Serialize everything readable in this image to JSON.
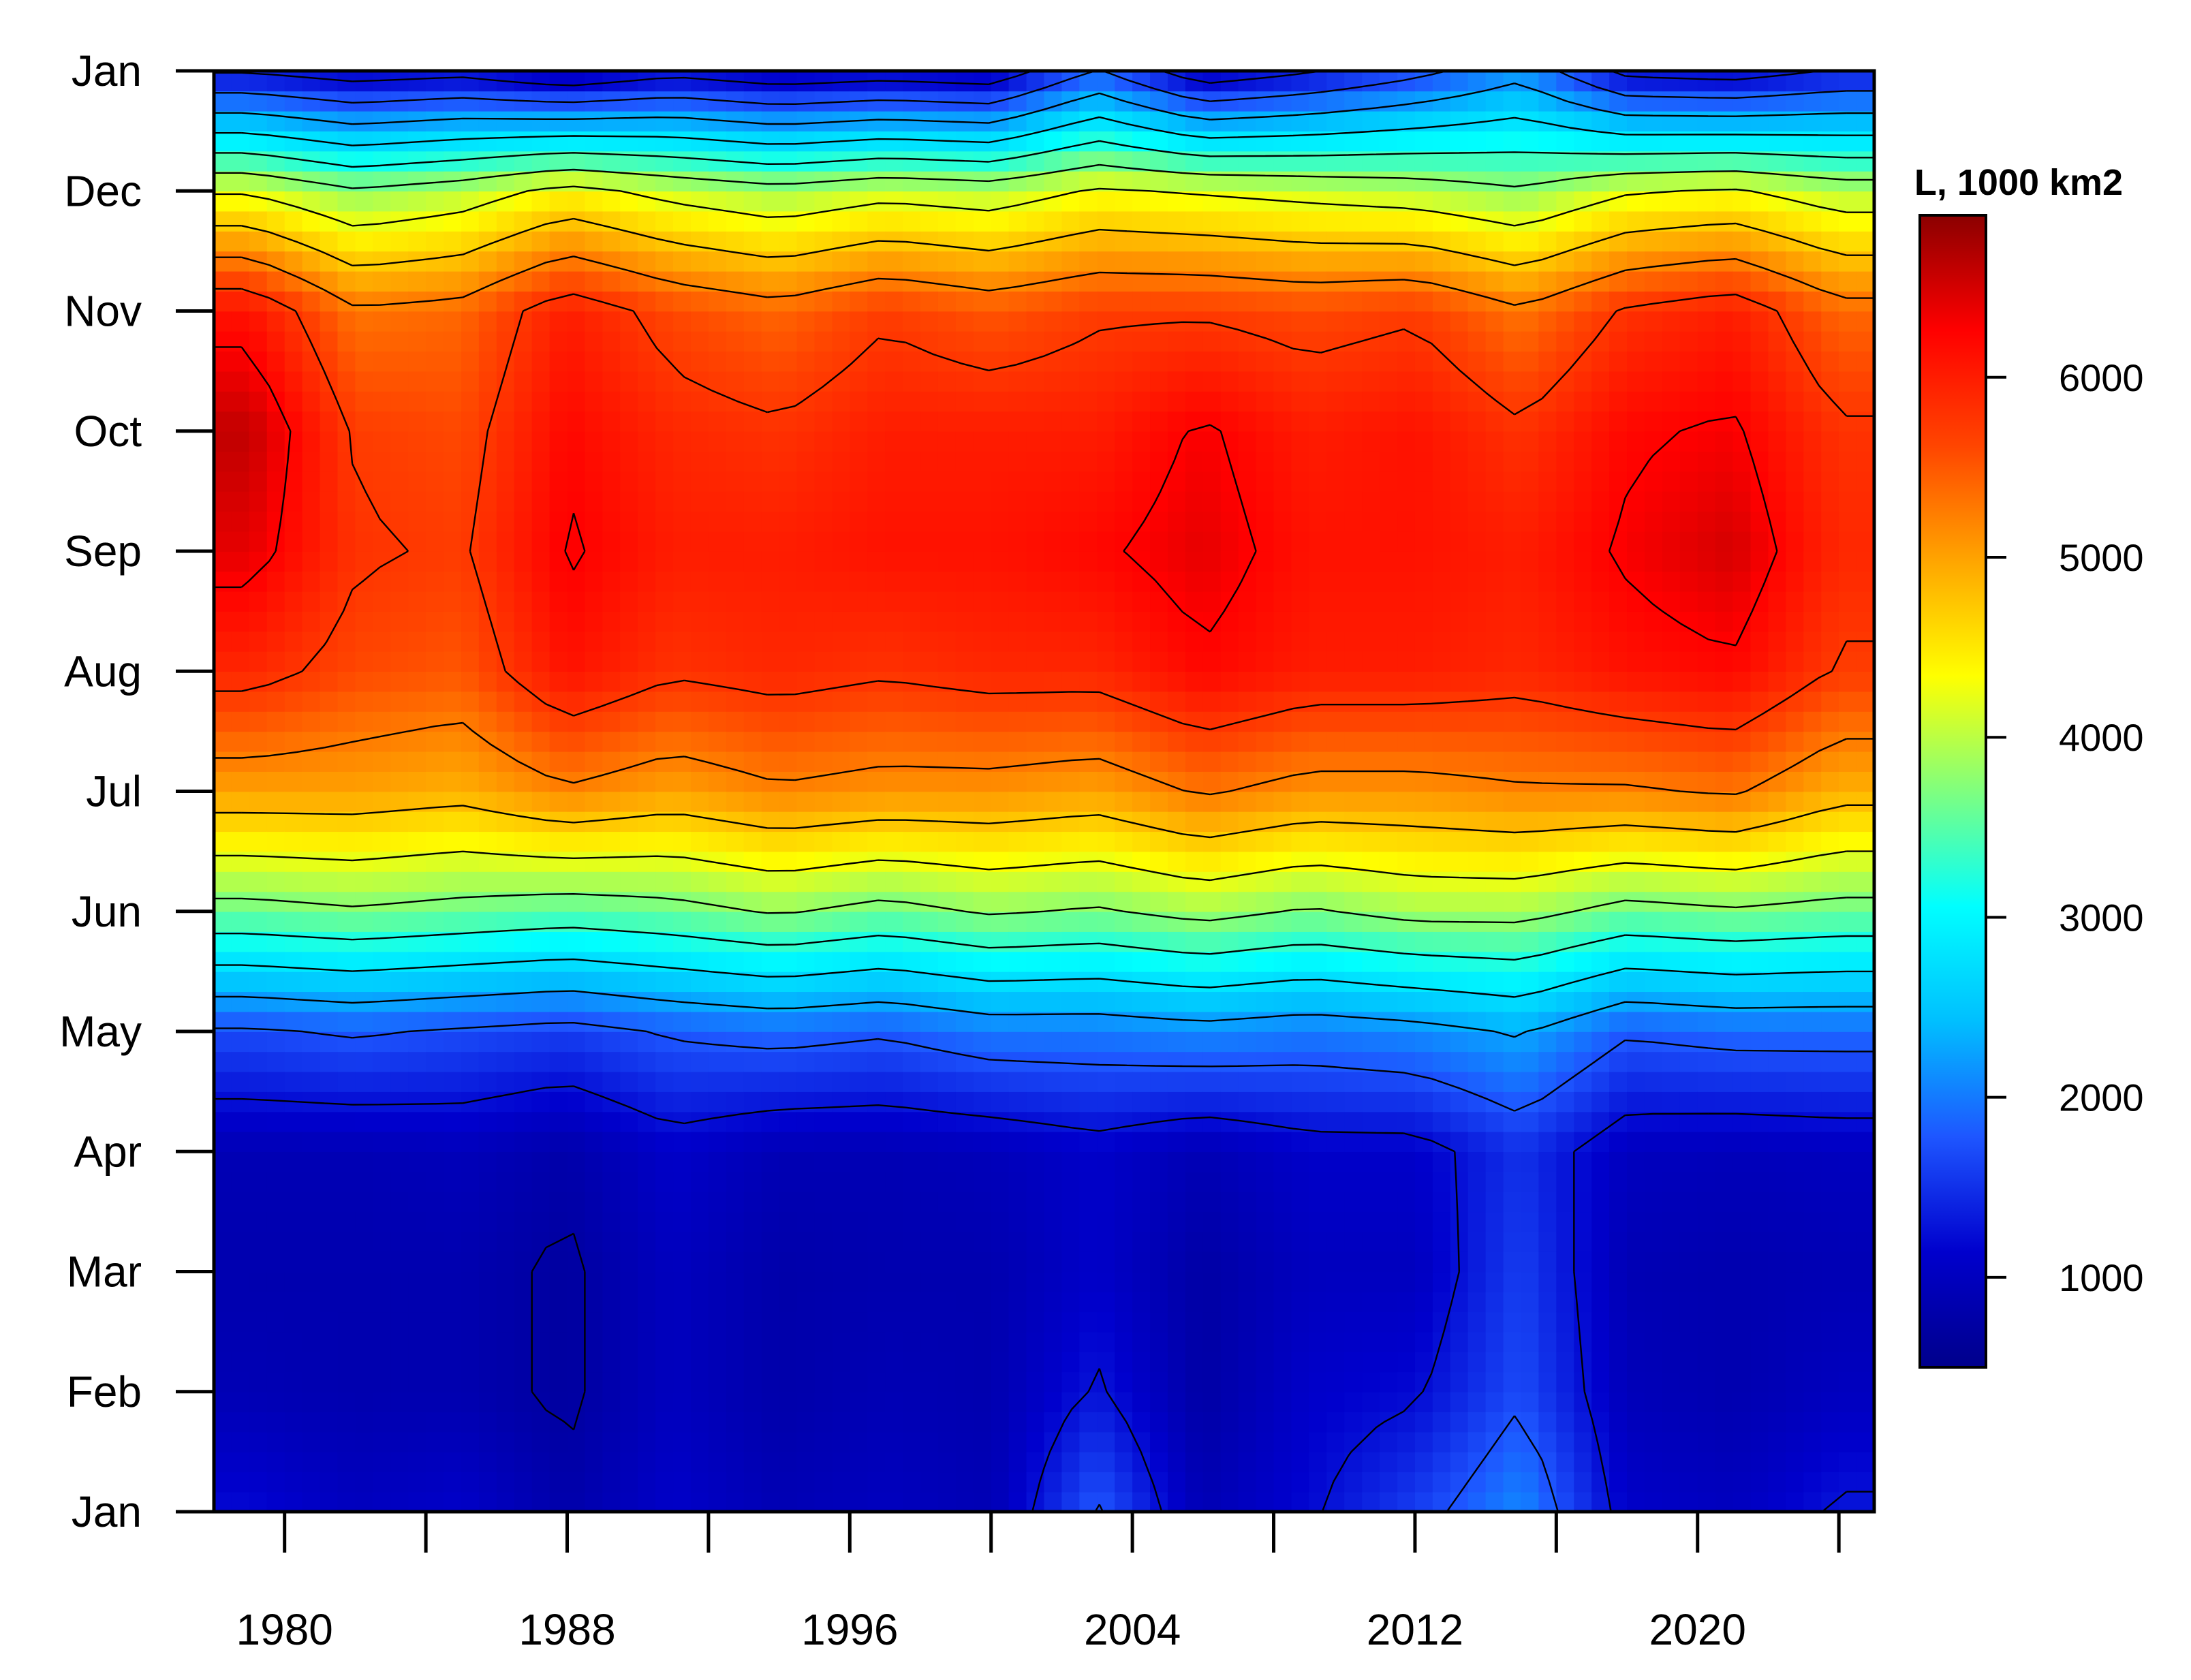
{
  "chart_data": {
    "type": "heatmap",
    "title": "",
    "xlabel": "",
    "ylabel": "",
    "x_ticks": [
      1980,
      1988,
      1996,
      2004,
      2012,
      2020
    ],
    "x_range": [
      1978,
      2025
    ],
    "y_ticks": [
      "Jan",
      "Feb",
      "Mar",
      "Apr",
      "May",
      "Jun",
      "Jul",
      "Aug",
      "Sep",
      "Oct",
      "Nov",
      "Dec",
      "Jan"
    ],
    "legend": {
      "title": "L, 1000 km2",
      "ticks": [
        1000,
        2000,
        3000,
        4000,
        5000,
        6000
      ],
      "range": [
        500,
        6900
      ],
      "position": "right",
      "colors": [
        "#00008b",
        "#0000cd",
        "#1e56ff",
        "#00bfff",
        "#00ffff",
        "#7fff7f",
        "#ffff00",
        "#ffa500",
        "#ff4500",
        "#ff0000",
        "#8b0000"
      ]
    },
    "contours": true,
    "months": [
      "Jan",
      "Feb",
      "Mar",
      "Apr",
      "May",
      "Jun",
      "Jul",
      "Aug",
      "Sep",
      "Oct",
      "Nov",
      "Dec"
    ],
    "years": [
      1979,
      1982,
      1985,
      1988,
      1991,
      1994,
      1997,
      2000,
      2003,
      2006,
      2009,
      2012,
      2015,
      2018,
      2021,
      2024
    ],
    "values_1000km2": [
      [
        1200,
        900,
        850,
        900,
        1700,
        3600,
        5000,
        5900,
        6400,
        6600,
        6100,
        4200
      ],
      [
        1000,
        850,
        850,
        900,
        1800,
        3700,
        5000,
        5600,
        5800,
        5700,
        5300,
        3800
      ],
      [
        1100,
        850,
        850,
        950,
        1700,
        3600,
        4900,
        5500,
        5700,
        5600,
        5400,
        4000
      ],
      [
        800,
        700,
        700,
        800,
        1600,
        3500,
        5200,
        6100,
        6300,
        6200,
        6000,
        4400
      ],
      [
        1100,
        1000,
        1000,
        1100,
        1800,
        3600,
        5000,
        5800,
        6000,
        5900,
        5600,
        4100
      ],
      [
        900,
        800,
        800,
        900,
        1900,
        3800,
        5200,
        5900,
        6000,
        5800,
        5400,
        3900
      ],
      [
        1000,
        900,
        850,
        900,
        1800,
        3600,
        5100,
        5800,
        6100,
        6000,
        5700,
        4100
      ],
      [
        900,
        850,
        850,
        950,
        2000,
        3800,
        5100,
        5900,
        6100,
        6000,
        5500,
        4000
      ],
      [
        1800,
        1300,
        1100,
        1100,
        2000,
        3700,
        5000,
        5900,
        6200,
        6000,
        5700,
        4300
      ],
      [
        900,
        750,
        750,
        900,
        2100,
        3900,
        5300,
        6200,
        6400,
        6300,
        5700,
        4200
      ],
      [
        1200,
        1100,
        1000,
        1100,
        2000,
        3700,
        5100,
        6000,
        6100,
        6000,
        5600,
        4100
      ],
      [
        1600,
        1200,
        1000,
        1100,
        2100,
        3900,
        5100,
        6000,
        6100,
        6100,
        5700,
        4000
      ],
      [
        2100,
        1700,
        1600,
        1500,
        2300,
        3900,
        5200,
        5900,
        6000,
        5800,
        5300,
        3800
      ],
      [
        1100,
        950,
        900,
        1000,
        1800,
        3600,
        5200,
        6100,
        6300,
        6200,
        5800,
        4200
      ],
      [
        1000,
        850,
        850,
        950,
        1900,
        3700,
        5300,
        6200,
        6500,
        6300,
        6000,
        4300
      ],
      [
        1300,
        1000,
        900,
        1000,
        1900,
        3600,
        4900,
        5700,
        5900,
        5800,
        5400,
        4000
      ]
    ]
  }
}
